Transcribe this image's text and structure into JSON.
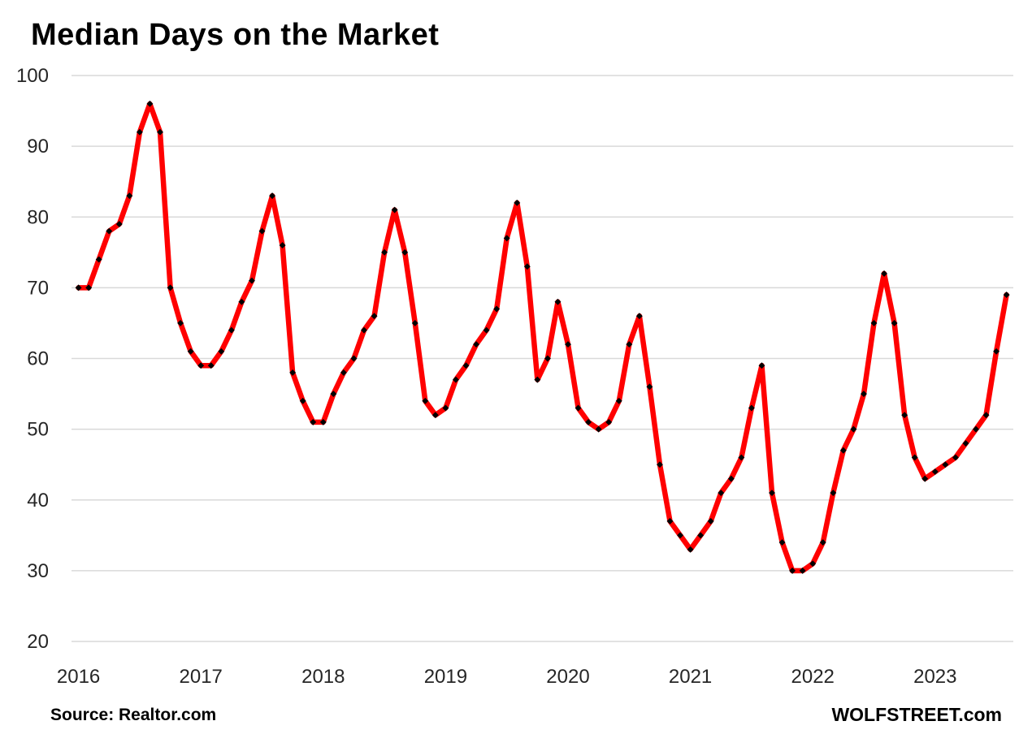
{
  "title": "Median Days on the Market",
  "footer": {
    "source": "Source: Realtor.com",
    "branding": "WOLFSTREET.com"
  },
  "chart_data": {
    "type": "line",
    "title": "Median Days on the Market",
    "series_name": "Median days on the market",
    "frequency": "monthly",
    "start_month": "2016-07",
    "end_month": "2024-02",
    "values": [
      70,
      70,
      74,
      78,
      79,
      83,
      92,
      96,
      92,
      70,
      65,
      61,
      59,
      59,
      61,
      64,
      68,
      71,
      78,
      83,
      76,
      58,
      54,
      51,
      51,
      55,
      58,
      60,
      64,
      66,
      75,
      81,
      75,
      65,
      54,
      52,
      53,
      57,
      59,
      62,
      64,
      67,
      77,
      82,
      73,
      57,
      60,
      68,
      62,
      53,
      51,
      50,
      51,
      54,
      62,
      66,
      56,
      45,
      37,
      35,
      33,
      35,
      37,
      41,
      43,
      46,
      53,
      59,
      41,
      34,
      30,
      30,
      31,
      34,
      41,
      47,
      50,
      55,
      65,
      72,
      65,
      52,
      46,
      43,
      44,
      45,
      46,
      48,
      50,
      52,
      61,
      69
    ],
    "x_tick_labels": [
      "2016",
      "2017",
      "2018",
      "2019",
      "2020",
      "2021",
      "2022",
      "2023"
    ],
    "x_tick_month_offsets": [
      0,
      12,
      24,
      36,
      48,
      60,
      72,
      84
    ],
    "y_ticks": [
      100,
      90,
      80,
      70,
      60,
      50,
      40,
      30,
      20
    ],
    "ylim": [
      20,
      100
    ],
    "grid": true,
    "legend": "none",
    "colors": {
      "line": "#ff0000",
      "marker": "#000000",
      "gridline": "#d9d9d9",
      "axis_text": "#262626",
      "background": "#ffffff"
    }
  }
}
